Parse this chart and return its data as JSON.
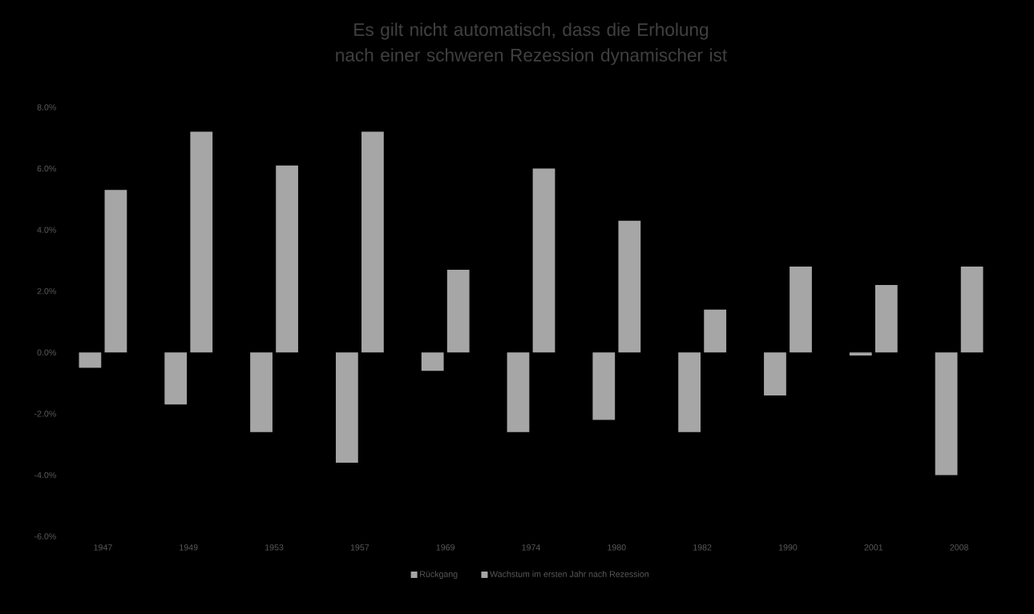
{
  "chart_data": {
    "type": "bar",
    "title": "Es gilt nicht automatisch, dass die Erholung nach einer schweren Rezession dynamischer ist",
    "categories": [
      "1947",
      "1949",
      "1953",
      "1957",
      "1969",
      "1974",
      "1980",
      "1982",
      "1990",
      "2001",
      "2008"
    ],
    "series": [
      {
        "name": "Rückgang",
        "color": "#a6a6a6",
        "values": [
          -0.5,
          -1.7,
          -2.6,
          -3.6,
          -0.6,
          -2.6,
          -2.2,
          -2.6,
          -1.4,
          -0.1,
          -4.0
        ]
      },
      {
        "name": "Wachstum im ersten Jahr nach Rezession",
        "color": "#a6a6a6",
        "values": [
          5.3,
          7.2,
          6.1,
          7.2,
          2.7,
          6.0,
          4.3,
          1.4,
          2.8,
          2.2,
          2.8
        ]
      }
    ],
    "ylim": [
      -6,
      8
    ],
    "yticks": [
      {
        "value": -6,
        "label": "-6.0%"
      },
      {
        "value": -4,
        "label": "-4.0%"
      },
      {
        "value": -2,
        "label": "-2.0%"
      },
      {
        "value": 0,
        "label": "0.0%"
      },
      {
        "value": 2,
        "label": "2.0%"
      },
      {
        "value": 4,
        "label": "4.0%"
      },
      {
        "value": 6,
        "label": "6.0%"
      },
      {
        "value": 8,
        "label": "8.0%"
      }
    ],
    "legend": "bottom"
  }
}
